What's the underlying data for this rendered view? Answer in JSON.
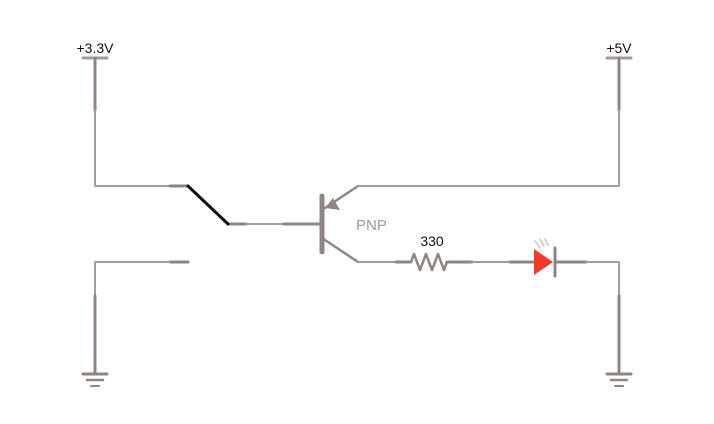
{
  "colors": {
    "wire": "#a39b99",
    "component": "#8f8684",
    "switch_lever": "#111111",
    "led_fill": "#f03a2a",
    "led_rays": "#c9c3c1",
    "label_dark": "#111111",
    "label_muted": "#a39b99"
  },
  "rails": {
    "left_supply": "+3.3V",
    "right_supply": "+5V"
  },
  "components": {
    "transistor_label": "PNP",
    "resistor_label": "330"
  }
}
